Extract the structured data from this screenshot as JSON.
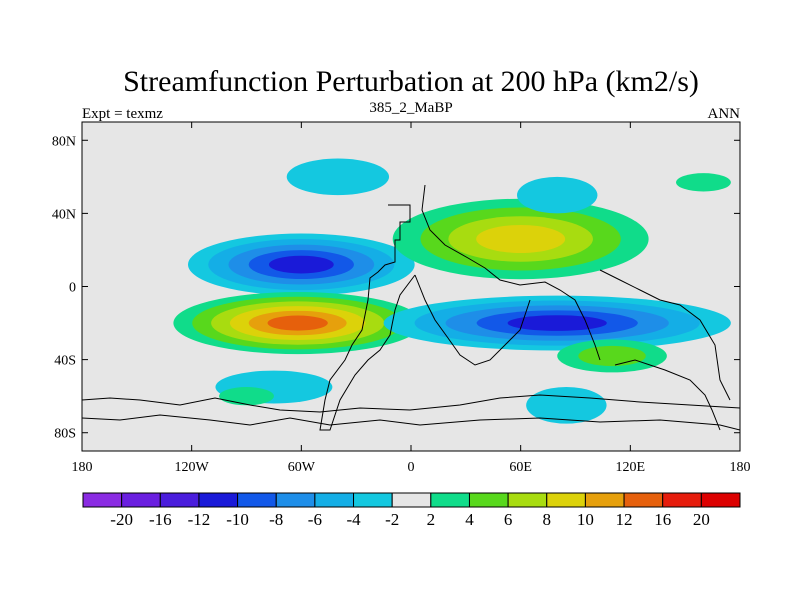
{
  "chart_data": {
    "type": "heatmap",
    "title": "Streamfunction Perturbation at 200 hPa (km2/s)",
    "left_string": "Expt = texmz",
    "center_string": "385_2_MaBP",
    "right_string": "ANN",
    "x_range": [
      -180,
      180
    ],
    "y_range": [
      -90,
      90
    ],
    "x_ticks": [
      {
        "value": -180,
        "label": "180"
      },
      {
        "value": -120,
        "label": "120W"
      },
      {
        "value": -60,
        "label": "60W"
      },
      {
        "value": 0,
        "label": "0"
      },
      {
        "value": 60,
        "label": "60E"
      },
      {
        "value": 120,
        "label": "120E"
      },
      {
        "value": 180,
        "label": "180"
      }
    ],
    "y_ticks": [
      {
        "value": 80,
        "label": "80N"
      },
      {
        "value": 40,
        "label": "40N"
      },
      {
        "value": 0,
        "label": "0"
      },
      {
        "value": -40,
        "label": "40S"
      },
      {
        "value": -80,
        "label": "80S"
      }
    ],
    "background_color": "#e6e6e6",
    "levels": [
      -20,
      -16,
      -12,
      -10,
      -8,
      -6,
      -4,
      -2,
      2,
      4,
      6,
      8,
      10,
      12,
      16,
      20
    ],
    "colorbar_colors": [
      "#8a2be2",
      "#6a1fe0",
      "#4a1ddc",
      "#1a1ad8",
      "#1258e8",
      "#1e8ee8",
      "#14aee6",
      "#14c8e0",
      "#e6e6e6",
      "#10dc8a",
      "#58d81c",
      "#a8dc10",
      "#dcd20a",
      "#e6a00c",
      "#e6600c",
      "#e61c0c",
      "#dc0000"
    ],
    "features": [
      {
        "name": "low-pacific-west",
        "lon": -60,
        "lat": 12,
        "rx": 62,
        "ry": 17,
        "levels": [
          -2,
          -4,
          -6,
          -8,
          -10
        ]
      },
      {
        "name": "high-pacific-south",
        "lon": -62,
        "lat": -20,
        "rx": 68,
        "ry": 17,
        "levels": [
          2,
          4,
          6,
          8,
          10,
          12
        ]
      },
      {
        "name": "high-asia",
        "lon": 60,
        "lat": 26,
        "rx": 70,
        "ry": 22,
        "levels": [
          2,
          4,
          6,
          8
        ]
      },
      {
        "name": "low-indian",
        "lon": 80,
        "lat": -20,
        "rx": 95,
        "ry": 15,
        "levels": [
          -2,
          -4,
          -6,
          -8,
          -10
        ]
      },
      {
        "name": "low-north-pacific",
        "lon": -40,
        "lat": 60,
        "rx": 28,
        "ry": 10,
        "levels": [
          -2
        ]
      },
      {
        "name": "low-north-atlantic",
        "lon": 80,
        "lat": 50,
        "rx": 22,
        "ry": 10,
        "levels": [
          -2
        ]
      },
      {
        "name": "low-southern-atlantic",
        "lon": -75,
        "lat": -55,
        "rx": 32,
        "ry": 9,
        "levels": [
          -2
        ]
      },
      {
        "name": "low-southern-indian",
        "lon": 85,
        "lat": -65,
        "rx": 22,
        "ry": 10,
        "levels": [
          -2
        ]
      },
      {
        "name": "high-south-pacific-east",
        "lon": -90,
        "lat": -60,
        "rx": 15,
        "ry": 5,
        "levels": [
          2
        ]
      },
      {
        "name": "high-south-indian",
        "lon": 110,
        "lat": -38,
        "rx": 30,
        "ry": 9,
        "levels": [
          2,
          4
        ]
      },
      {
        "name": "high-arctic",
        "lon": 160,
        "lat": 57,
        "rx": 15,
        "ry": 5,
        "levels": [
          2
        ]
      }
    ]
  }
}
